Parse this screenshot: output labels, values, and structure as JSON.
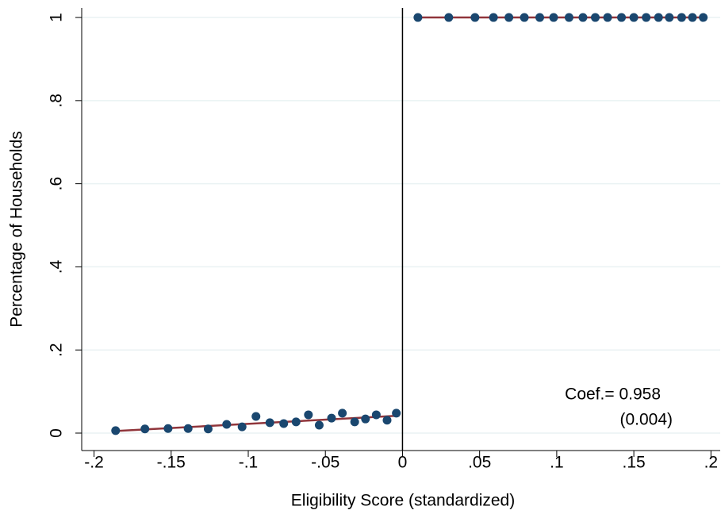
{
  "chart_data": {
    "type": "scatter",
    "x_label": "Eligibility Score (standardized)",
    "y_label": "Percentage of Households",
    "annotations": [
      "Coef.= 0.958",
      "(0.004)"
    ],
    "xlim": [
      -0.208,
      0.206
    ],
    "ylim": [
      -0.042,
      1.023
    ],
    "xticks": [
      {
        "value": -0.2,
        "label": "-.2"
      },
      {
        "value": -0.15,
        "label": "-.15"
      },
      {
        "value": -0.1,
        "label": "-.1"
      },
      {
        "value": -0.05,
        "label": "-.05"
      },
      0,
      {
        "value": 0.05,
        "label": ".05"
      },
      {
        "value": 0.1,
        "label": ".1"
      },
      {
        "value": 0.15,
        "label": ".15"
      },
      {
        "value": 0.2,
        "label": ".2"
      }
    ],
    "yticks": [
      0,
      {
        "value": 0.2,
        "label": ".2"
      },
      {
        "value": 0.4,
        "label": ".4"
      },
      {
        "value": 0.6,
        "label": ".6"
      },
      {
        "value": 0.8,
        "label": ".8"
      },
      1
    ],
    "grid": true,
    "cutoff": 0,
    "scatter": [
      {
        "color": "#1a476f",
        "x": [
          -0.186,
          -0.167,
          -0.152,
          -0.139,
          -0.126,
          -0.114,
          -0.104,
          -0.095,
          -0.086,
          -0.077,
          -0.069,
          -0.061,
          -0.054,
          -0.046,
          -0.039,
          -0.031,
          -0.024,
          -0.017,
          -0.01,
          -0.004
        ],
        "values": [
          0.006,
          0.01,
          0.011,
          0.011,
          0.01,
          0.021,
          0.015,
          0.04,
          0.025,
          0.023,
          0.027,
          0.044,
          0.019,
          0.036,
          0.048,
          0.027,
          0.034,
          0.044,
          0.031,
          0.048
        ]
      },
      {
        "color": "#1a476f",
        "x": [
          0.01,
          0.03,
          0.047,
          0.059,
          0.069,
          0.079,
          0.089,
          0.098,
          0.108,
          0.117,
          0.125,
          0.133,
          0.142,
          0.15,
          0.158,
          0.166,
          0.173,
          0.181,
          0.188,
          0.195
        ],
        "values": [
          1,
          1,
          1,
          1,
          1,
          1,
          1,
          1,
          1,
          1,
          1,
          1,
          1,
          1,
          1,
          1,
          1,
          1,
          1,
          1
        ]
      }
    ],
    "fit_lines": [
      {
        "color": "#90353b",
        "x": [
          -0.186,
          -0.002
        ],
        "values": [
          0.005,
          0.042
        ]
      },
      {
        "color": "#90353b",
        "x": [
          0.01,
          0.195
        ],
        "values": [
          1,
          1
        ]
      }
    ]
  }
}
